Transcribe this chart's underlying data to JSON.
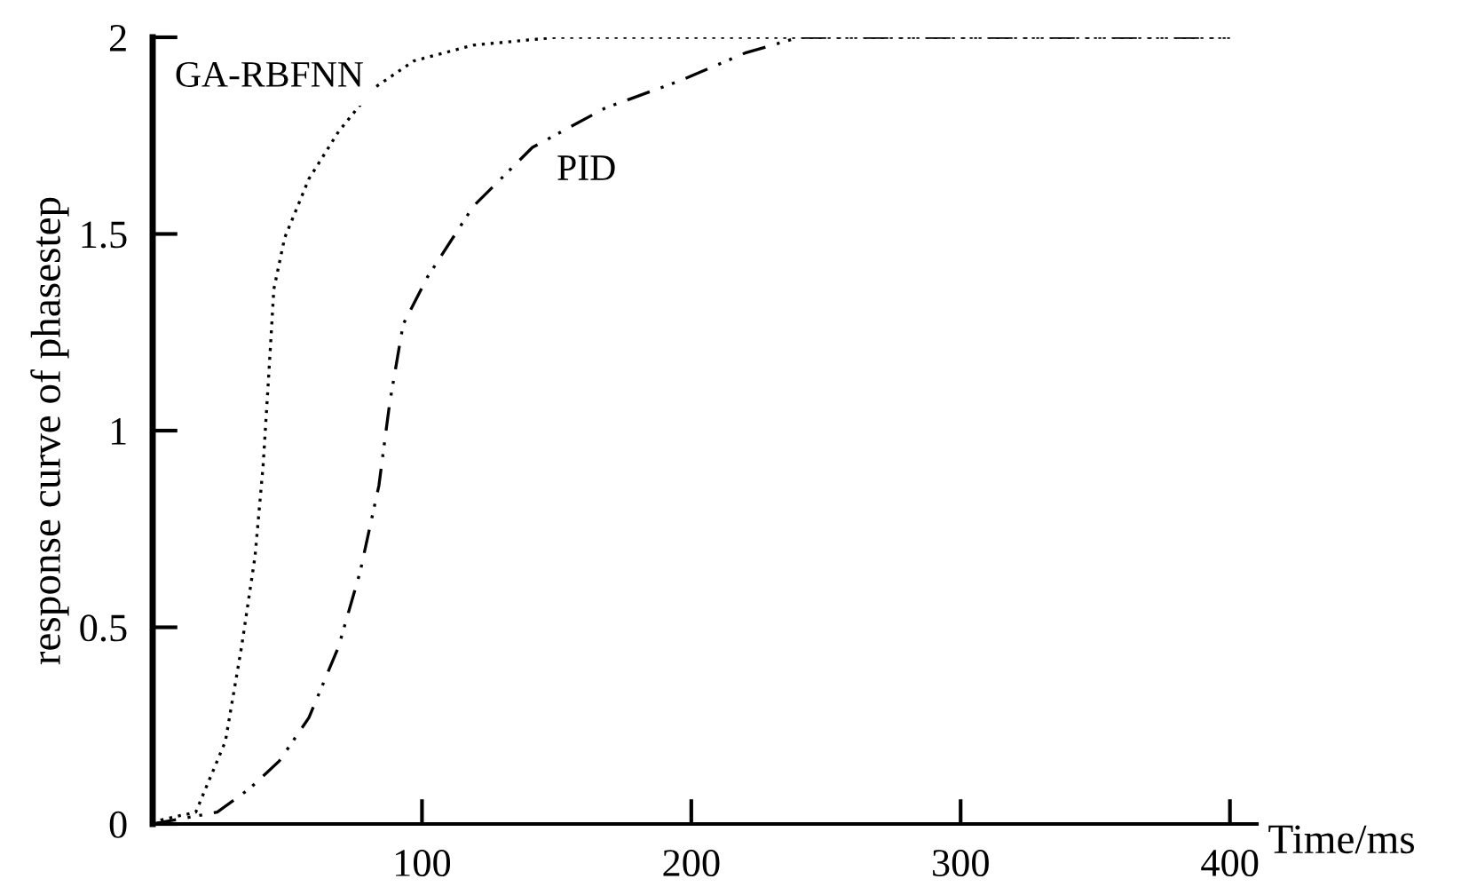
{
  "chart_data": {
    "type": "line",
    "xlabel": "Time/ms",
    "ylabel": "response curve of phasestep",
    "xlim": [
      0,
      410
    ],
    "ylim": [
      0,
      2
    ],
    "xticks": [
      100,
      200,
      300,
      400
    ],
    "yticks": [
      0,
      0.5,
      1,
      1.5,
      2
    ],
    "grid": false,
    "legend": false,
    "series": [
      {
        "name": "GA-RBFNN",
        "color": "#000000",
        "line_style": "dotted",
        "x": [
          0,
          3,
          16,
          27,
          33,
          38,
          41,
          43,
          45,
          49,
          58,
          69,
          82,
          97,
          119,
          150,
          400
        ],
        "values": [
          0,
          0.01,
          0.03,
          0.21,
          0.45,
          0.68,
          0.91,
          1.13,
          1.36,
          1.49,
          1.64,
          1.76,
          1.87,
          1.94,
          1.98,
          2,
          2
        ]
      },
      {
        "name": "PID",
        "color": "#000000",
        "line_style": "dashdot",
        "x": [
          0,
          24,
          36,
          47,
          58,
          69,
          77,
          84,
          88,
          93,
          102,
          119,
          141,
          168,
          196,
          220,
          240,
          400
        ],
        "values": [
          0,
          0.03,
          0.09,
          0.16,
          0.27,
          0.45,
          0.64,
          0.86,
          1.07,
          1.27,
          1.39,
          1.57,
          1.72,
          1.82,
          1.89,
          1.96,
          2,
          2
        ]
      }
    ]
  }
}
